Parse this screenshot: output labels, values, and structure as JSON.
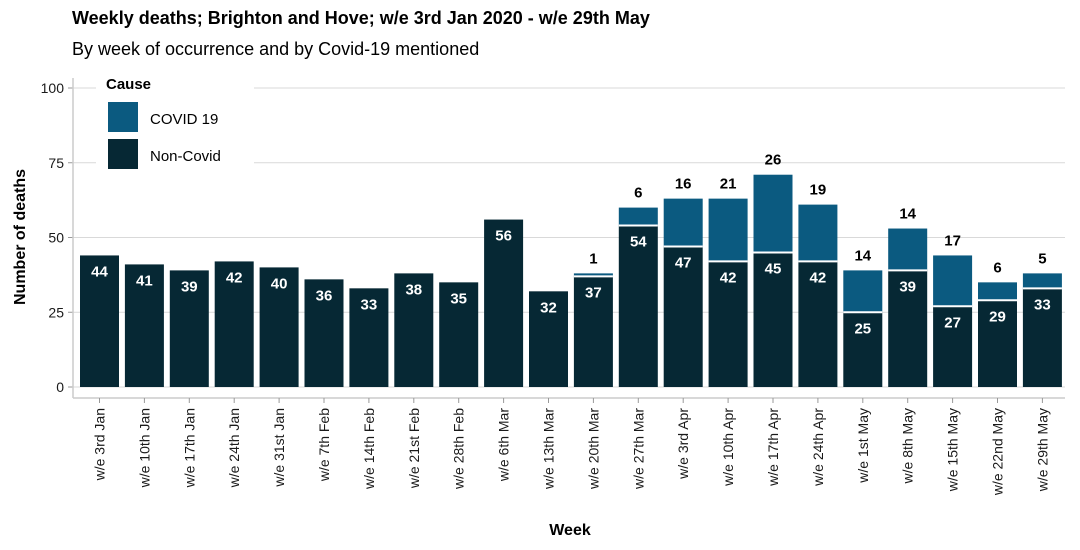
{
  "header": {
    "title": "Weekly deaths; Brighton and Hove; w/e 3rd Jan 2020 - w/e 29th May",
    "subtitle": "By week of occurrence and by Covid-19 mentioned"
  },
  "colors": {
    "covid": "#0b5a80",
    "non_covid": "#062834",
    "grid": "#d9d9d9",
    "axis": "#cccccc"
  },
  "chart_data": {
    "type": "bar",
    "stacked": true,
    "xlabel": "Week",
    "ylabel": "Number of deaths",
    "ylim": [
      0,
      100
    ],
    "yticks": [
      0,
      25,
      50,
      75,
      100
    ],
    "grid": true,
    "legend": {
      "title": "Cause",
      "position": "top-left"
    },
    "categories": [
      "w/e 3rd Jan",
      "w/e 10th Jan",
      "w/e 17th Jan",
      "w/e 24th Jan",
      "w/e 31st Jan",
      "w/e 7th Feb",
      "w/e 14th Feb",
      "w/e 21st Feb",
      "w/e 28th Feb",
      "w/e 6th Mar",
      "w/e 13th Mar",
      "w/e 20th Mar",
      "w/e 27th Mar",
      "w/e 3rd Apr",
      "w/e 10th Apr",
      "w/e 17th Apr",
      "w/e 24th Apr",
      "w/e 1st May",
      "w/e 8th May",
      "w/e 15th May",
      "w/e 22nd May",
      "w/e 29th May"
    ],
    "series": [
      {
        "name": "Non-Covid",
        "values": [
          44,
          41,
          39,
          42,
          40,
          36,
          33,
          38,
          35,
          56,
          32,
          37,
          54,
          47,
          42,
          45,
          42,
          25,
          39,
          27,
          29,
          33
        ]
      },
      {
        "name": "COVID 19",
        "values": [
          0,
          0,
          0,
          0,
          0,
          0,
          0,
          0,
          0,
          0,
          0,
          1,
          6,
          16,
          21,
          26,
          19,
          14,
          14,
          17,
          6,
          5
        ]
      }
    ]
  }
}
